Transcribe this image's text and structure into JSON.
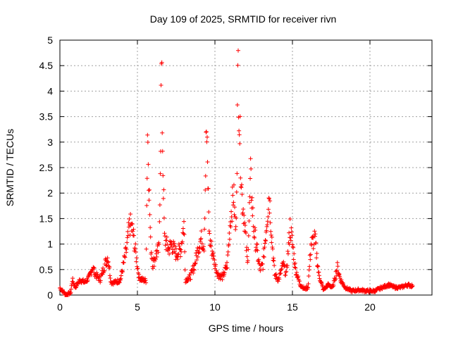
{
  "chart_data": {
    "type": "scatter",
    "title": "Day 109 of 2025, SRMTID for receiver rivn",
    "xlabel": "GPS time / hours",
    "ylabel": "SRMTID / TECUs",
    "xlim": [
      0,
      24
    ],
    "ylim": [
      0,
      5
    ],
    "x_ticks": [
      "0",
      "5",
      "10",
      "15",
      "20"
    ],
    "x_tick_values": [
      0,
      5,
      10,
      15,
      20
    ],
    "y_ticks": [
      "0",
      "0.5",
      "1",
      "1.5",
      "2",
      "2.5",
      "3",
      "3.5",
      "4",
      "4.5",
      "5"
    ],
    "y_tick_values": [
      0,
      0.5,
      1,
      1.5,
      2,
      2.5,
      3,
      3.5,
      4,
      4.5,
      5
    ],
    "grid": true,
    "marker": "+",
    "marker_color": "#ff0000",
    "series_profile": [
      {
        "x": 0.0,
        "y": 0.14
      },
      {
        "x": 0.4,
        "y": 0.0
      },
      {
        "x": 0.7,
        "y": 0.05
      },
      {
        "x": 0.8,
        "y": 0.3
      },
      {
        "x": 1.0,
        "y": 0.15
      },
      {
        "x": 1.3,
        "y": 0.3
      },
      {
        "x": 1.6,
        "y": 0.25
      },
      {
        "x": 1.9,
        "y": 0.35
      },
      {
        "x": 2.1,
        "y": 0.55
      },
      {
        "x": 2.3,
        "y": 0.4
      },
      {
        "x": 2.6,
        "y": 0.3
      },
      {
        "x": 2.9,
        "y": 0.6
      },
      {
        "x": 3.1,
        "y": 0.75
      },
      {
        "x": 3.3,
        "y": 0.25
      },
      {
        "x": 3.6,
        "y": 0.25
      },
      {
        "x": 3.9,
        "y": 0.3
      },
      {
        "x": 4.1,
        "y": 0.6
      },
      {
        "x": 4.3,
        "y": 0.9
      },
      {
        "x": 4.5,
        "y": 1.4
      },
      {
        "x": 4.7,
        "y": 1.25
      },
      {
        "x": 4.9,
        "y": 0.8
      },
      {
        "x": 5.1,
        "y": 0.35
      },
      {
        "x": 5.3,
        "y": 0.3
      },
      {
        "x": 5.55,
        "y": 0.28
      },
      {
        "x": 5.65,
        "y": 3.25
      },
      {
        "x": 5.75,
        "y": 2.2
      },
      {
        "x": 5.85,
        "y": 1.0
      },
      {
        "x": 6.0,
        "y": 0.6
      },
      {
        "x": 6.2,
        "y": 0.8
      },
      {
        "x": 6.4,
        "y": 0.9
      },
      {
        "x": 6.55,
        "y": 4.4
      },
      {
        "x": 6.65,
        "y": 2.5
      },
      {
        "x": 6.75,
        "y": 1.1
      },
      {
        "x": 7.0,
        "y": 0.9
      },
      {
        "x": 7.2,
        "y": 1.0
      },
      {
        "x": 7.5,
        "y": 0.8
      },
      {
        "x": 7.8,
        "y": 0.9
      },
      {
        "x": 8.0,
        "y": 1.4
      },
      {
        "x": 8.1,
        "y": 0.3
      },
      {
        "x": 8.4,
        "y": 0.35
      },
      {
        "x": 8.7,
        "y": 0.6
      },
      {
        "x": 8.9,
        "y": 0.9
      },
      {
        "x": 9.1,
        "y": 1.1
      },
      {
        "x": 9.3,
        "y": 1.0
      },
      {
        "x": 9.45,
        "y": 3.25
      },
      {
        "x": 9.55,
        "y": 2.2
      },
      {
        "x": 9.65,
        "y": 1.1
      },
      {
        "x": 9.8,
        "y": 0.9
      },
      {
        "x": 10.0,
        "y": 0.6
      },
      {
        "x": 10.2,
        "y": 0.4
      },
      {
        "x": 10.5,
        "y": 0.35
      },
      {
        "x": 10.8,
        "y": 0.6
      },
      {
        "x": 11.0,
        "y": 1.5
      },
      {
        "x": 11.2,
        "y": 2.0
      },
      {
        "x": 11.35,
        "y": 1.2
      },
      {
        "x": 11.5,
        "y": 4.55
      },
      {
        "x": 11.6,
        "y": 3.2
      },
      {
        "x": 11.75,
        "y": 1.9
      },
      {
        "x": 11.9,
        "y": 1.5
      },
      {
        "x": 12.1,
        "y": 0.6
      },
      {
        "x": 12.3,
        "y": 2.3
      },
      {
        "x": 12.5,
        "y": 1.3
      },
      {
        "x": 12.7,
        "y": 0.9
      },
      {
        "x": 12.9,
        "y": 0.5
      },
      {
        "x": 13.1,
        "y": 0.6
      },
      {
        "x": 13.3,
        "y": 1.3
      },
      {
        "x": 13.5,
        "y": 2.0
      },
      {
        "x": 13.65,
        "y": 1.2
      },
      {
        "x": 13.85,
        "y": 0.4
      },
      {
        "x": 14.1,
        "y": 0.3
      },
      {
        "x": 14.4,
        "y": 0.6
      },
      {
        "x": 14.6,
        "y": 0.4
      },
      {
        "x": 14.85,
        "y": 1.35
      },
      {
        "x": 15.0,
        "y": 1.0
      },
      {
        "x": 15.2,
        "y": 0.5
      },
      {
        "x": 15.5,
        "y": 0.2
      },
      {
        "x": 15.8,
        "y": 0.12
      },
      {
        "x": 16.0,
        "y": 0.15
      },
      {
        "x": 16.2,
        "y": 1.0
      },
      {
        "x": 16.45,
        "y": 1.1
      },
      {
        "x": 16.7,
        "y": 0.4
      },
      {
        "x": 17.0,
        "y": 0.1
      },
      {
        "x": 17.3,
        "y": 0.2
      },
      {
        "x": 17.6,
        "y": 0.15
      },
      {
        "x": 17.9,
        "y": 0.55
      },
      {
        "x": 18.1,
        "y": 0.3
      },
      {
        "x": 18.4,
        "y": 0.15
      },
      {
        "x": 18.8,
        "y": 0.08
      },
      {
        "x": 19.3,
        "y": 0.1
      },
      {
        "x": 19.8,
        "y": 0.08
      },
      {
        "x": 20.3,
        "y": 0.08
      },
      {
        "x": 20.8,
        "y": 0.15
      },
      {
        "x": 21.2,
        "y": 0.2
      },
      {
        "x": 21.6,
        "y": 0.15
      },
      {
        "x": 22.0,
        "y": 0.15
      },
      {
        "x": 22.4,
        "y": 0.2
      },
      {
        "x": 22.75,
        "y": 0.18
      }
    ]
  }
}
